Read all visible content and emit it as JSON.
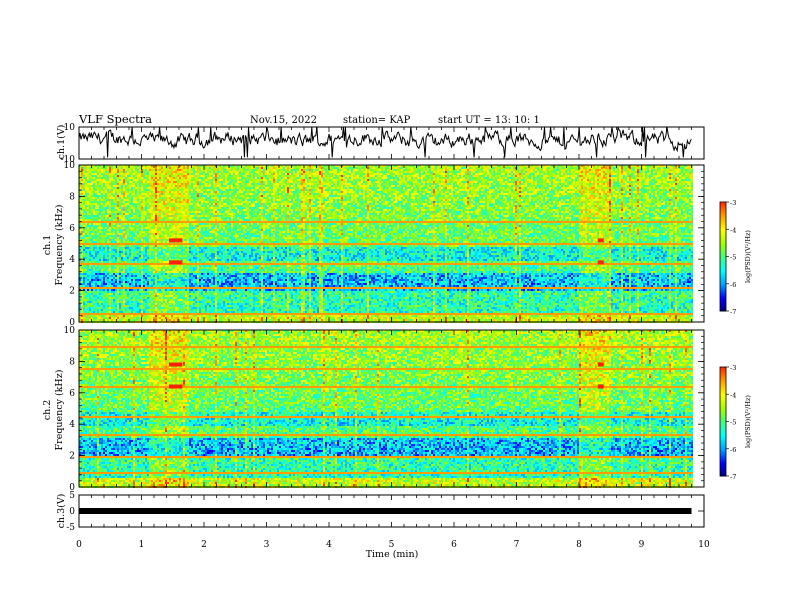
{
  "header": {
    "title": "VLF Spectra",
    "date": "Nov.15, 2022",
    "station": "station= KAP",
    "start_ut": "start  UT  =   13: 10: 1"
  },
  "chart_data": [
    {
      "panel": "ch1_waveform",
      "type": "line",
      "ylabel": "ch.1(V)",
      "yticks": [
        "10",
        "-10"
      ],
      "ylim": [
        -10,
        10
      ],
      "xlim": [
        0,
        10
      ],
      "series": [
        {
          "values_note_free": true,
          "x_range": [
            0,
            9.8
          ],
          "approx_level": 0,
          "amplitude": 4
        }
      ]
    },
    {
      "panel": "ch1_spectrogram",
      "type": "heatmap",
      "ylabel": "ch.1\nFrequency (kHz)",
      "ylabel_line1": "ch.1",
      "ylabel_line2": "Frequency (kHz)",
      "yticks": [
        "0",
        "2",
        "4",
        "6",
        "8",
        "10"
      ],
      "ylim": [
        0,
        10
      ],
      "xlim": [
        0,
        10
      ],
      "data_extent_x": [
        0,
        9.8
      ],
      "bright_bands_x": [
        [
          1.12,
          1.75
        ],
        [
          7.98,
          8.48
        ]
      ],
      "tone_lines_khz": [
        6.4,
        5.0,
        3.8,
        2.2,
        0.6
      ],
      "colorbar": {
        "label": "log(PSD)(V²/Hz)",
        "ticks": [
          "-3",
          "-4",
          "-5",
          "-6",
          "-7"
        ],
        "range": [
          -7,
          -3
        ]
      }
    },
    {
      "panel": "ch2_spectrogram",
      "type": "heatmap",
      "ylabel_line1": "ch.2",
      "ylabel_line2": "Frequency (kHz)",
      "yticks": [
        "0",
        "2",
        "4",
        "6",
        "8",
        "10"
      ],
      "ylim": [
        0,
        10
      ],
      "xlim": [
        0,
        10
      ],
      "data_extent_x": [
        0,
        9.8
      ],
      "bright_bands_x": [
        [
          1.12,
          1.75
        ],
        [
          7.98,
          8.48
        ]
      ],
      "tone_lines_khz": [
        9.0,
        7.6,
        6.4,
        4.5,
        3.4,
        2.0,
        1.0
      ],
      "colorbar": {
        "label": "log(PSD)(V²/Hz)",
        "ticks": [
          "-3",
          "-4",
          "-5",
          "-6",
          "-7"
        ],
        "range": [
          -7,
          -3
        ]
      }
    },
    {
      "panel": "ch3_waveform",
      "type": "line",
      "ylabel": "ch.3(V)",
      "yticks": [
        "5",
        "0",
        "-5"
      ],
      "ylim": [
        -5,
        5
      ],
      "xlim": [
        0,
        10
      ],
      "series": [
        {
          "x_range": [
            0,
            9.8
          ],
          "level": 0
        }
      ]
    }
  ],
  "x_axis": {
    "label": "Time  (min)",
    "ticks": [
      "0",
      "1",
      "2",
      "3",
      "4",
      "5",
      "6",
      "7",
      "8",
      "9",
      "10"
    ],
    "range": [
      0,
      10
    ]
  },
  "colors": {
    "cmap": [
      "#00007f",
      "#0000ff",
      "#00a0ff",
      "#00ffff",
      "#40ff80",
      "#a0ff00",
      "#ffff00",
      "#ffa000",
      "#ff3000",
      "#ffffff"
    ]
  }
}
